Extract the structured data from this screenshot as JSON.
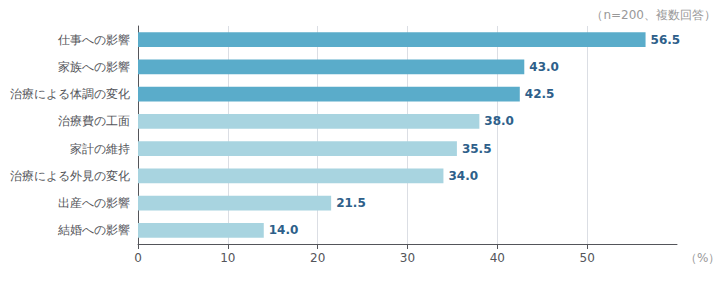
{
  "chart_data": {
    "type": "bar",
    "orientation": "horizontal",
    "categories": [
      "仕事への影響",
      "家族への影響",
      "治療による体調の変化",
      "治療費の工面",
      "家計の維持",
      "治療による外見の変化",
      "出産への影響",
      "結婚への影響"
    ],
    "values": [
      56.5,
      43.0,
      42.5,
      38.0,
      35.5,
      34.0,
      21.5,
      14.0
    ],
    "value_labels": [
      "56.5",
      "43.0",
      "42.5",
      "38.0",
      "35.5",
      "34.0",
      "21.5",
      "14.0"
    ],
    "colors": [
      "#5aacca",
      "#5aacca",
      "#5aacca",
      "#a8d4e0",
      "#a8d4e0",
      "#a8d4e0",
      "#a8d4e0",
      "#a8d4e0"
    ],
    "xlabel": "（%）",
    "annotations": [
      "（n=200、複数回答）"
    ],
    "xlim": [
      0,
      60
    ],
    "xticks": [
      0,
      10,
      20,
      30,
      40,
      50
    ],
    "grid": true,
    "data_labels": true
  }
}
